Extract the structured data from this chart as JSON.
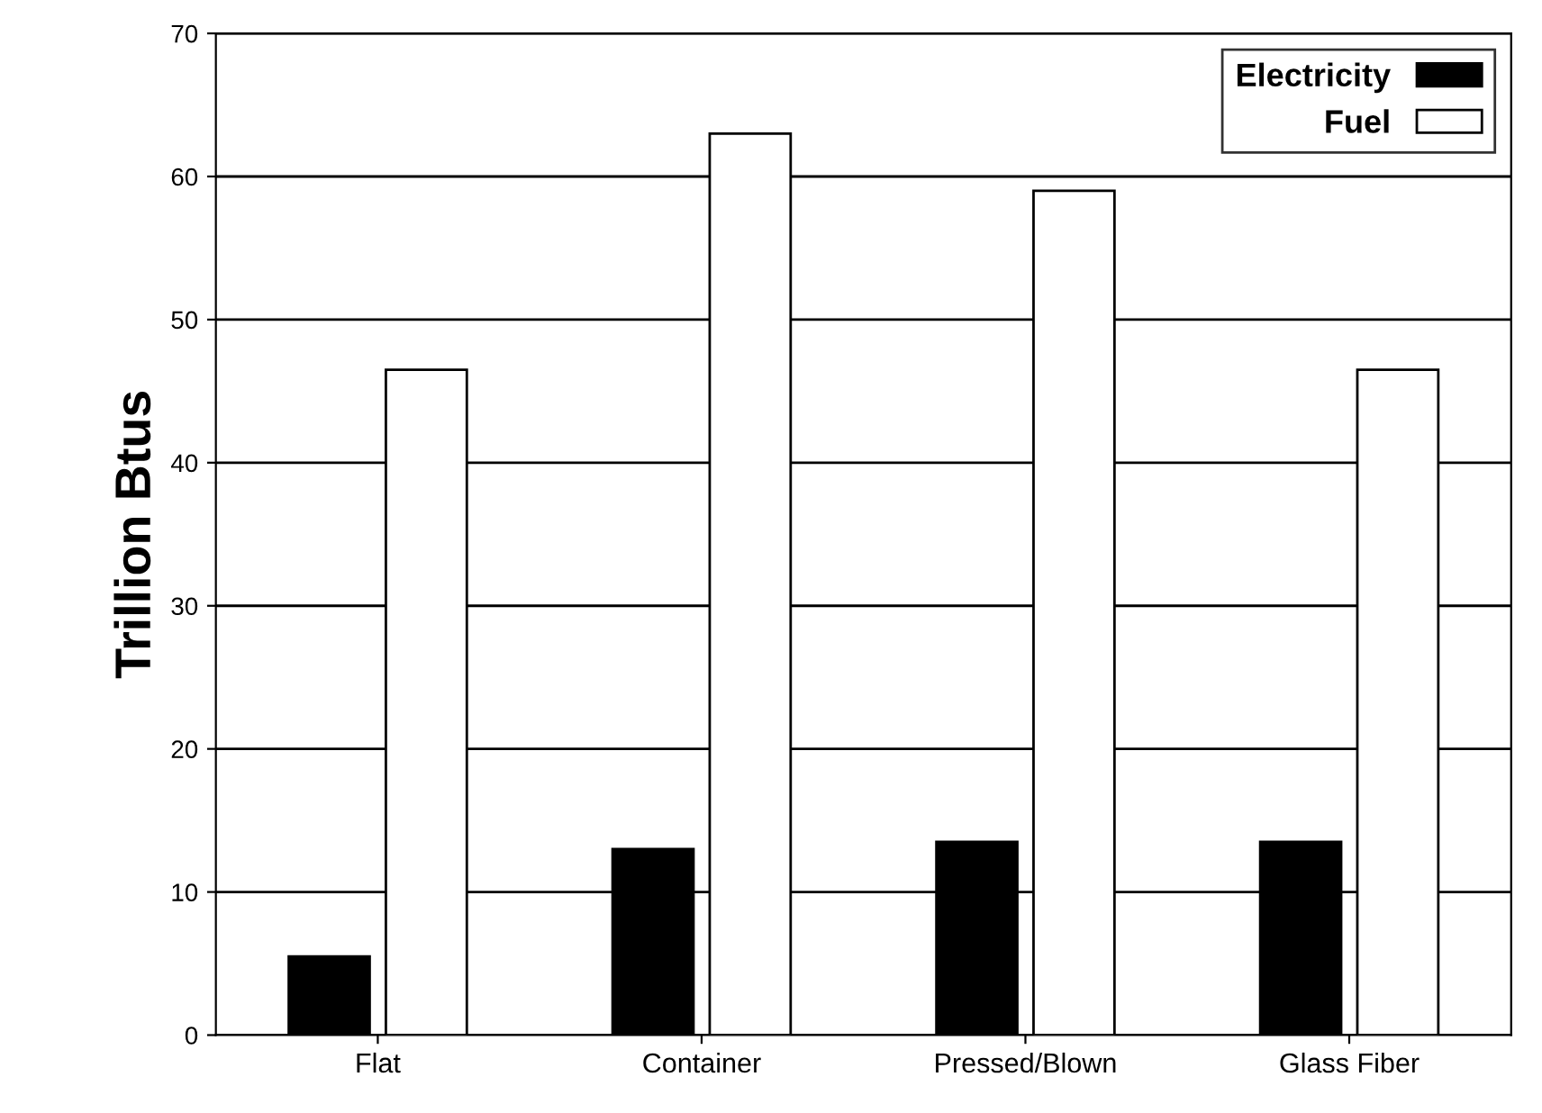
{
  "chart_data": {
    "type": "bar",
    "ylabel": "Trillion Btus",
    "categories": [
      "Flat",
      "Container",
      "Pressed/Blown",
      "Glass Fiber"
    ],
    "series": [
      {
        "name": "Electricity",
        "color": "#000000",
        "values": [
          5.5,
          13,
          13.5,
          13.5
        ]
      },
      {
        "name": "Fuel",
        "color": "#ffffff",
        "values": [
          46.5,
          63,
          59,
          46.5
        ]
      }
    ],
    "ylim": [
      0,
      70
    ],
    "yticks": [
      0,
      10,
      20,
      30,
      40,
      50,
      60,
      70
    ],
    "grid": "y",
    "legend": "top right"
  }
}
